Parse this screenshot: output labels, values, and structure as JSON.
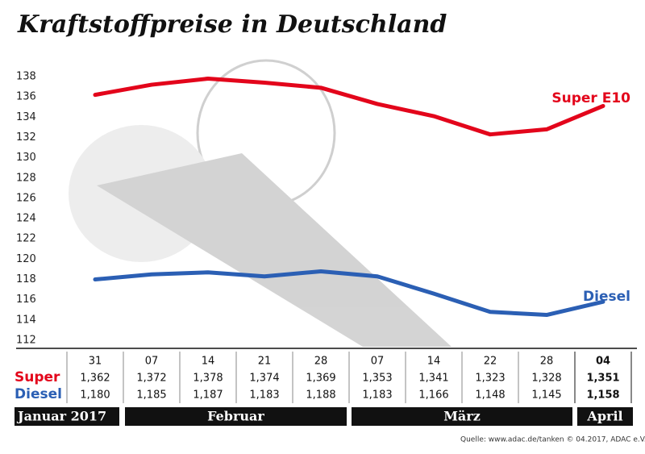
{
  "chart_data": {
    "type": "line",
    "title": "Kraftstoffpreise in Deutschland",
    "categories": [
      "31",
      "07",
      "14",
      "21",
      "28",
      "07",
      "14",
      "22",
      "28",
      "04"
    ],
    "months": [
      "Januar 2017",
      "Februar",
      "März",
      "April"
    ],
    "row_labels": [
      "Super",
      "Diesel"
    ],
    "series": [
      {
        "name": "Super E10",
        "color": "#e3051b",
        "values": [
          136.2,
          137.2,
          137.8,
          137.4,
          136.9,
          135.3,
          134.1,
          132.3,
          132.8,
          135.1
        ],
        "value_labels": [
          "1,362",
          "1,372",
          "1,378",
          "1,374",
          "1,369",
          "1,353",
          "1,341",
          "1,323",
          "1,328",
          "1,351"
        ]
      },
      {
        "name": "Diesel",
        "color": "#2b5fb4",
        "values": [
          118.0,
          118.5,
          118.7,
          118.3,
          118.8,
          118.3,
          116.6,
          114.8,
          114.5,
          115.8
        ],
        "value_labels": [
          "1,180",
          "1,185",
          "1,187",
          "1,183",
          "1,188",
          "1,183",
          "1,166",
          "1,148",
          "1,145",
          "1,158"
        ]
      }
    ],
    "ylim": [
      112,
      138
    ],
    "yticks": [
      112,
      114,
      116,
      118,
      120,
      122,
      124,
      126,
      128,
      130,
      132,
      134,
      136,
      138
    ],
    "grid": false,
    "source": "Quelle: www.adac.de/tanken  © 04.2017, ADAC e.V."
  }
}
